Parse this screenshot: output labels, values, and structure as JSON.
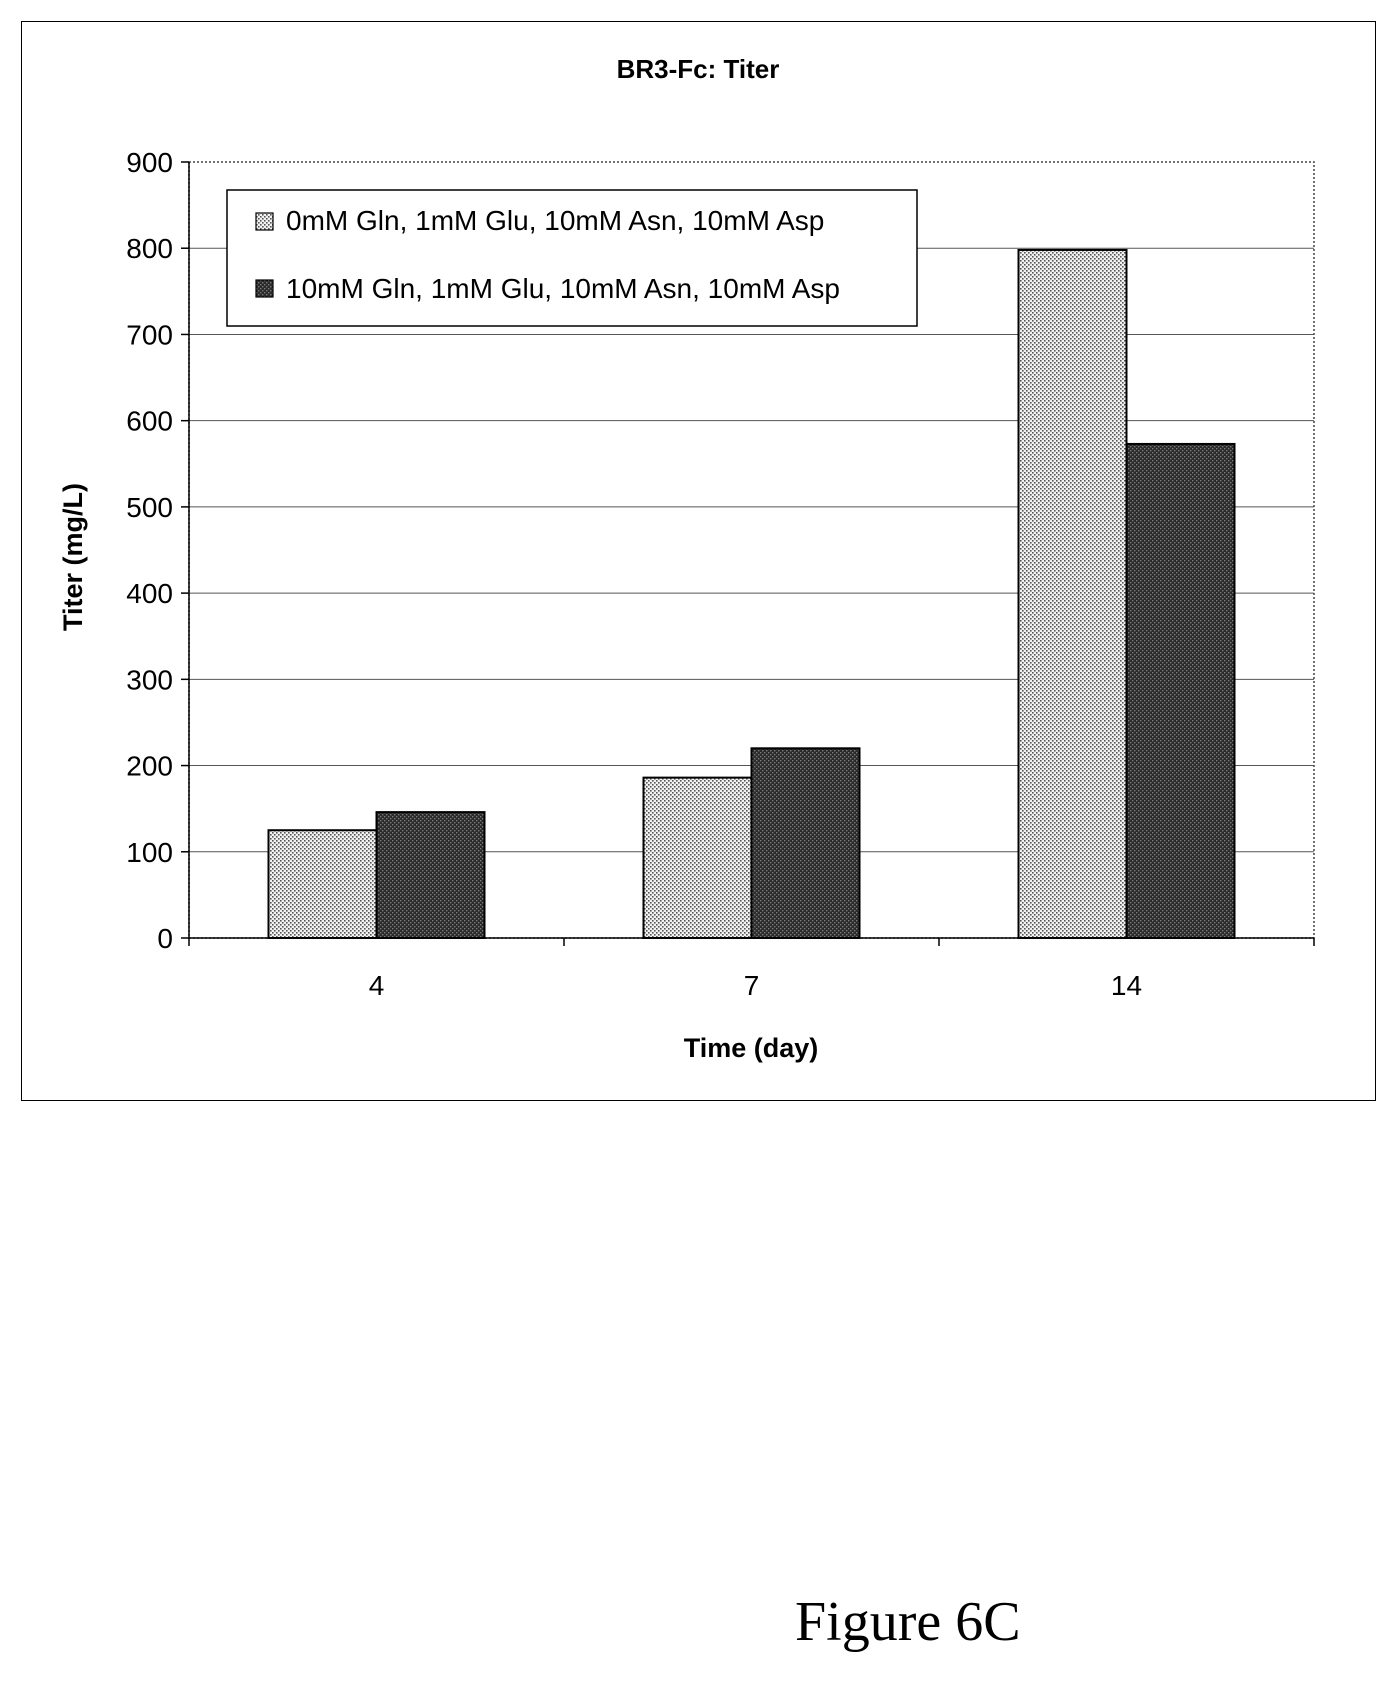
{
  "chart_data": {
    "type": "bar",
    "title": "BR3-Fc: Titer",
    "xlabel": "Time (day)",
    "ylabel": "Titer (mg/L)",
    "categories": [
      "4",
      "7",
      "14"
    ],
    "ylim": [
      0,
      900
    ],
    "yticks": [
      0,
      100,
      200,
      300,
      400,
      500,
      600,
      700,
      800,
      900
    ],
    "grid": true,
    "legend_position": "top-left",
    "series": [
      {
        "name": "0mM Gln, 1mM Glu, 10mM Asn, 10mM Asp",
        "values": [
          125,
          186,
          798
        ],
        "pattern": "light-dots",
        "color": "#d9d9d9"
      },
      {
        "name": "10mM Gln, 1mM Glu, 10mM Asn, 10mM Asp",
        "values": [
          146,
          220,
          573
        ],
        "pattern": "dark-dots",
        "color": "#3a3a3a"
      }
    ]
  },
  "figure": {
    "caption": "Figure 6C"
  }
}
